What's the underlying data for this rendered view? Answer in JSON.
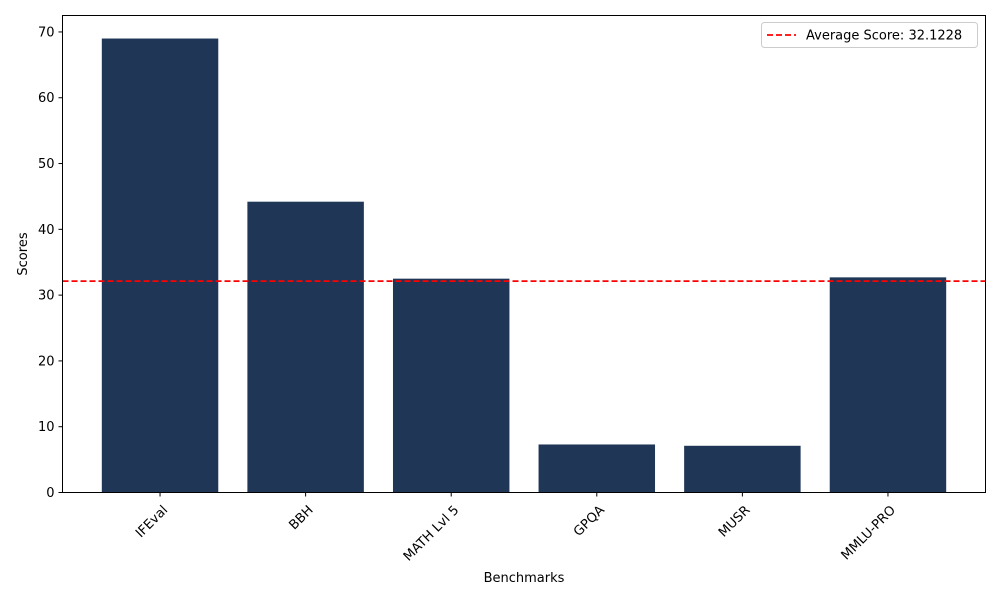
{
  "chart_data": {
    "type": "bar",
    "title": "",
    "xlabel": "Benchmarks",
    "ylabel": "Scores",
    "categories": [
      "IFEval",
      "BBH",
      "MATH Lvl 5",
      "GPQA",
      "MUSR",
      "MMLU-PRO"
    ],
    "values": [
      69.0,
      44.2,
      32.5,
      7.3,
      7.1,
      32.7
    ],
    "ylim": [
      0,
      72.5
    ],
    "yticks": [
      0,
      10,
      20,
      30,
      40,
      50,
      60,
      70
    ],
    "bar_color": "#1f3657",
    "grid": false,
    "reference_line": {
      "value": 32.1228,
      "color": "#ff0000",
      "style": "dashed",
      "label": "Average Score: 32.1228"
    },
    "legend_placement": "top-right",
    "xtick_rotation": "45"
  }
}
